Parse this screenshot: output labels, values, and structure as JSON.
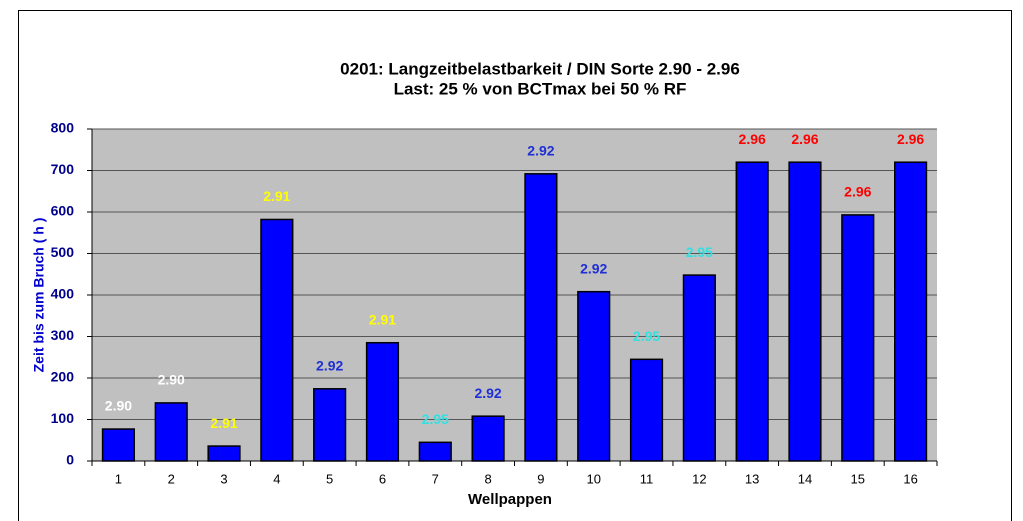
{
  "chart_data": {
    "type": "bar",
    "title": "0201: Langzeitbelastbarkeit / DIN Sorte 2.90 - 2.96",
    "subtitle": "Last: 25 % von BCTmax bei 50 % RF",
    "x_label": "Wellpappen",
    "y_label": "Zeit bis zum Bruch ( h )",
    "categories": [
      "1",
      "2",
      "3",
      "4",
      "5",
      "6",
      "7",
      "8",
      "9",
      "10",
      "11",
      "12",
      "13",
      "14",
      "15",
      "16"
    ],
    "values": [
      77,
      140,
      36,
      582,
      174,
      285,
      45,
      108,
      692,
      408,
      245,
      448,
      720,
      720,
      593,
      720
    ],
    "color": "#0000ff",
    "bar_labels": [
      "2.90",
      "2.90",
      "2.91",
      "2.91",
      "2.92",
      "2.91",
      "2.95",
      "2.92",
      "2.92",
      "2.92",
      "2.95",
      "2.95",
      "2.96",
      "2.96",
      "2.96",
      "2.96"
    ],
    "bar_label_colors": [
      "#ffffff",
      "#ffffff",
      "#ffff00",
      "#ffff00",
      "#1f2fd6",
      "#ffff00",
      "#33e0e0",
      "#1f2fd6",
      "#1f2fd6",
      "#1f2fd6",
      "#33e0e0",
      "#33e0e0",
      "#ff0000",
      "#ff0000",
      "#ff0000",
      "#ff0000"
    ],
    "ylim": [
      0,
      800
    ],
    "yticks": [
      0,
      100,
      200,
      300,
      400,
      500,
      600,
      700,
      800
    ],
    "grid": true
  }
}
